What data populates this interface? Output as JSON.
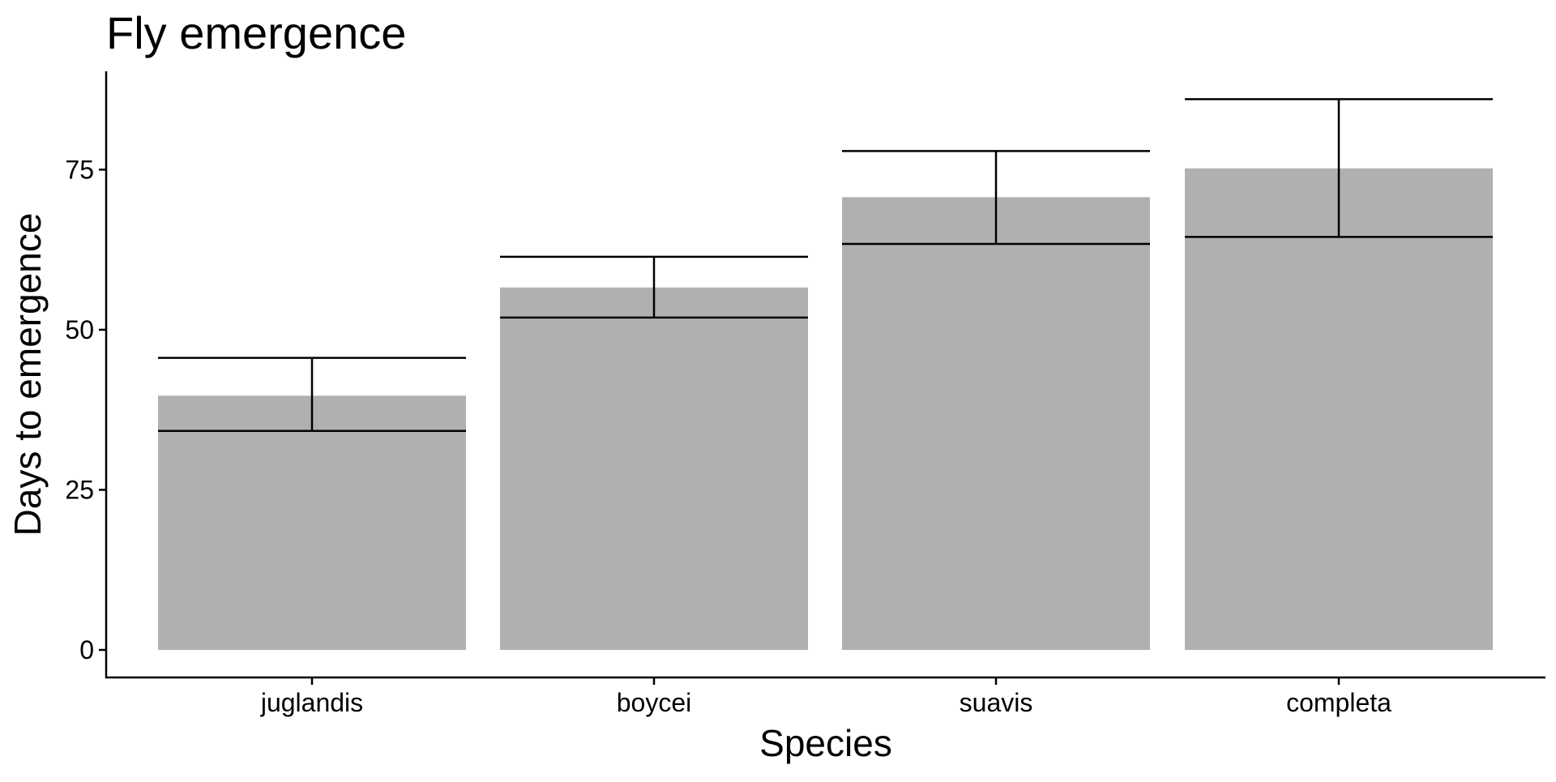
{
  "chart_data": {
    "type": "bar",
    "title": "Fly emergence",
    "xlabel": "Species",
    "ylabel": "Days to emergence",
    "categories": [
      "juglandis",
      "boycei",
      "suavis",
      "completa"
    ],
    "values": [
      39.7,
      56.6,
      70.7,
      75.2
    ],
    "error_low": [
      34.2,
      51.9,
      63.4,
      64.5
    ],
    "error_high": [
      45.6,
      61.4,
      77.9,
      86.0
    ],
    "yticks": [
      0,
      25,
      50,
      75
    ],
    "ytick_labels": [
      "0",
      "25",
      "50",
      "75"
    ],
    "ylim": [
      -4.3,
      90.3
    ],
    "grid": false,
    "bar_color": "#b0b0b0",
    "error_color": "#000000"
  }
}
